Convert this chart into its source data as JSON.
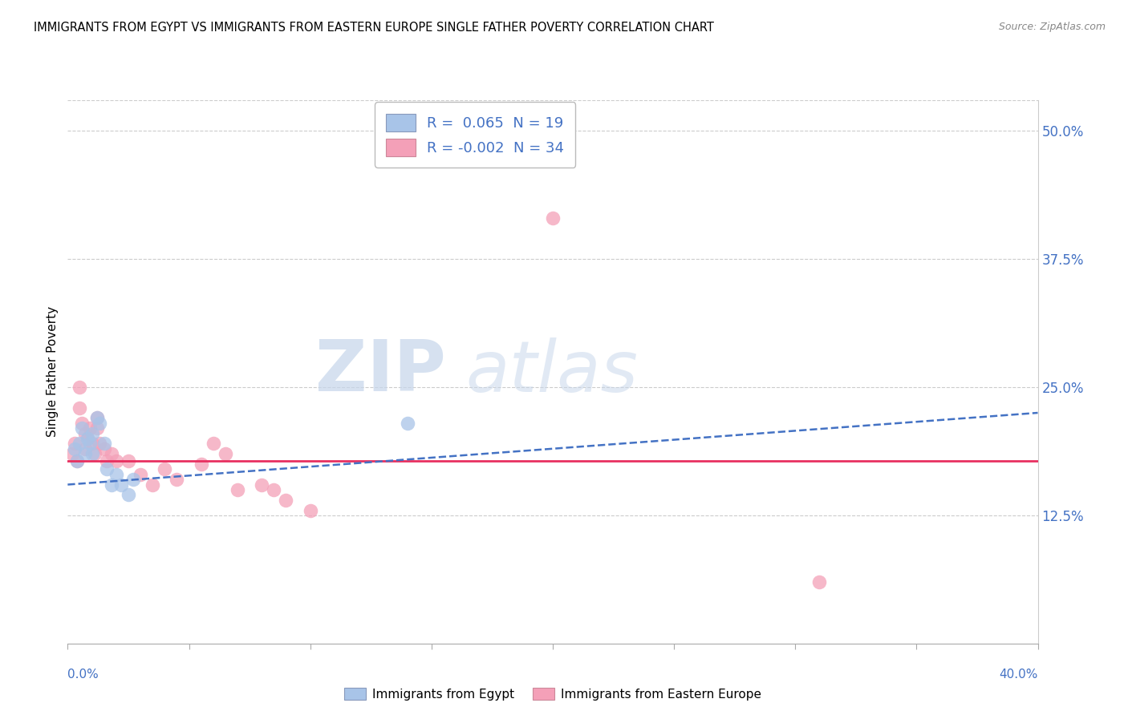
{
  "title": "IMMIGRANTS FROM EGYPT VS IMMIGRANTS FROM EASTERN EUROPE SINGLE FATHER POVERTY CORRELATION CHART",
  "source": "Source: ZipAtlas.com",
  "ylabel": "Single Father Poverty",
  "ytick_values": [
    0.125,
    0.25,
    0.375,
    0.5
  ],
  "ytick_labels": [
    "12.5%",
    "25.0%",
    "37.5%",
    "50.0%"
  ],
  "xlim": [
    0.0,
    0.4
  ],
  "ylim": [
    0.0,
    0.53
  ],
  "color_egypt": "#a8c4e8",
  "color_ee": "#f4a0b8",
  "trendline_egypt_color": "#4472c4",
  "trendline_ee_color": "#e83060",
  "legend1_r": " 0.065",
  "legend1_n": "19",
  "legend2_r": "-0.002",
  "legend2_n": "34",
  "egypt_trend_x": [
    0.0,
    0.4
  ],
  "egypt_trend_y": [
    0.155,
    0.225
  ],
  "ee_trend_x": [
    0.0,
    0.4
  ],
  "ee_trend_y": [
    0.178,
    0.178
  ],
  "egypt_points": [
    [
      0.003,
      0.19
    ],
    [
      0.004,
      0.178
    ],
    [
      0.005,
      0.195
    ],
    [
      0.006,
      0.21
    ],
    [
      0.007,
      0.185
    ],
    [
      0.008,
      0.2
    ],
    [
      0.009,
      0.195
    ],
    [
      0.01,
      0.205
    ],
    [
      0.01,
      0.185
    ],
    [
      0.012,
      0.22
    ],
    [
      0.013,
      0.215
    ],
    [
      0.015,
      0.195
    ],
    [
      0.016,
      0.17
    ],
    [
      0.018,
      0.155
    ],
    [
      0.02,
      0.165
    ],
    [
      0.022,
      0.155
    ],
    [
      0.025,
      0.145
    ],
    [
      0.027,
      0.16
    ],
    [
      0.14,
      0.215
    ]
  ],
  "ee_points": [
    [
      0.002,
      0.185
    ],
    [
      0.003,
      0.195
    ],
    [
      0.004,
      0.178
    ],
    [
      0.005,
      0.23
    ],
    [
      0.005,
      0.25
    ],
    [
      0.006,
      0.215
    ],
    [
      0.007,
      0.205
    ],
    [
      0.007,
      0.19
    ],
    [
      0.008,
      0.2
    ],
    [
      0.009,
      0.21
    ],
    [
      0.01,
      0.195
    ],
    [
      0.011,
      0.185
    ],
    [
      0.012,
      0.21
    ],
    [
      0.012,
      0.22
    ],
    [
      0.013,
      0.195
    ],
    [
      0.015,
      0.19
    ],
    [
      0.016,
      0.178
    ],
    [
      0.018,
      0.185
    ],
    [
      0.02,
      0.178
    ],
    [
      0.025,
      0.178
    ],
    [
      0.03,
      0.165
    ],
    [
      0.035,
      0.155
    ],
    [
      0.04,
      0.17
    ],
    [
      0.045,
      0.16
    ],
    [
      0.055,
      0.175
    ],
    [
      0.06,
      0.195
    ],
    [
      0.065,
      0.185
    ],
    [
      0.07,
      0.15
    ],
    [
      0.08,
      0.155
    ],
    [
      0.085,
      0.15
    ],
    [
      0.09,
      0.14
    ],
    [
      0.1,
      0.13
    ],
    [
      0.2,
      0.415
    ],
    [
      0.31,
      0.06
    ]
  ]
}
